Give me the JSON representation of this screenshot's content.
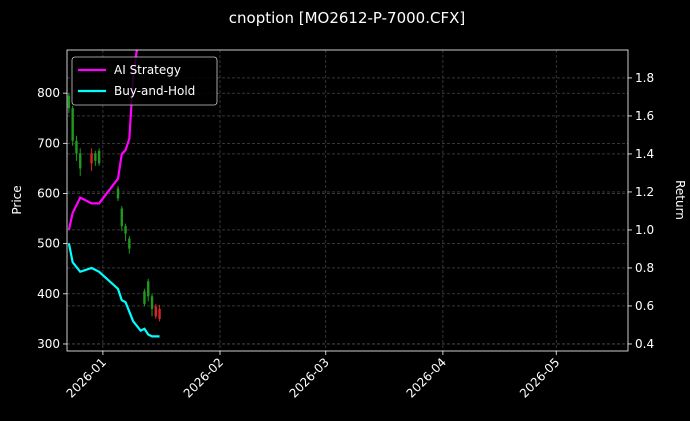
{
  "chart_data": {
    "type": "candlestick",
    "title": "cnoption [MO2612-P-7000.CFX]",
    "ylabel": "Price",
    "y2label": "Return",
    "x": [
      -9,
      -8,
      -7,
      -6,
      -3,
      -2,
      -1,
      4,
      5,
      6,
      7,
      11,
      12,
      13,
      14,
      15
    ],
    "open": [
      795,
      770,
      705,
      680,
      660,
      680,
      685,
      610,
      570,
      535,
      510,
      405,
      425,
      395,
      355,
      350
    ],
    "high": [
      800,
      775,
      715,
      690,
      690,
      685,
      690,
      615,
      575,
      540,
      515,
      410,
      430,
      400,
      380,
      378
    ],
    "low": [
      760,
      695,
      665,
      635,
      645,
      655,
      655,
      585,
      525,
      505,
      480,
      375,
      385,
      355,
      350,
      345
    ],
    "close": [
      770,
      705,
      680,
      650,
      680,
      665,
      660,
      590,
      535,
      520,
      490,
      380,
      395,
      370,
      375,
      370
    ],
    "up_color": "#d62728",
    "down_color": "#1f9a1f",
    "xlim": [
      -9.5,
      139
    ],
    "xticks": [
      {
        "value": 0,
        "label": "2026-01"
      },
      {
        "value": 31,
        "label": "2026-02"
      },
      {
        "value": 59,
        "label": "2026-03"
      },
      {
        "value": 90,
        "label": "2026-04"
      },
      {
        "value": 120,
        "label": "2026-05"
      }
    ],
    "ylim": [
      286,
      886
    ],
    "yticks": [
      300,
      400,
      500,
      600,
      700,
      800
    ],
    "y2lim": [
      0.363,
      1.947
    ],
    "y2ticks": [
      0.4,
      0.6,
      0.8,
      {
        "value": 1,
        "label": "1.0"
      },
      1.2,
      1.4,
      1.6,
      1.8
    ],
    "grid": true,
    "legend": "upper left",
    "series": [
      {
        "name": "AI Strategy",
        "color": "#ff00ff",
        "axis": "y2",
        "x": [
          -9,
          -8,
          -7,
          -6,
          -3,
          -1,
          4,
          5,
          6,
          7,
          8,
          9
        ],
        "values": [
          1.0,
          1.09,
          1.13,
          1.17,
          1.14,
          1.14,
          1.27,
          1.4,
          1.42,
          1.48,
          1.8,
          1.95
        ]
      },
      {
        "name": "Buy-and-Hold",
        "color": "#00ffff",
        "axis": "y2",
        "x": [
          -9,
          -8,
          -6,
          -3,
          -1,
          4,
          5,
          6,
          7,
          8,
          10,
          11,
          12,
          13,
          15
        ],
        "values": [
          0.93,
          0.83,
          0.78,
          0.8,
          0.78,
          0.69,
          0.63,
          0.62,
          0.57,
          0.52,
          0.47,
          0.48,
          0.45,
          0.44,
          0.44
        ]
      }
    ]
  }
}
